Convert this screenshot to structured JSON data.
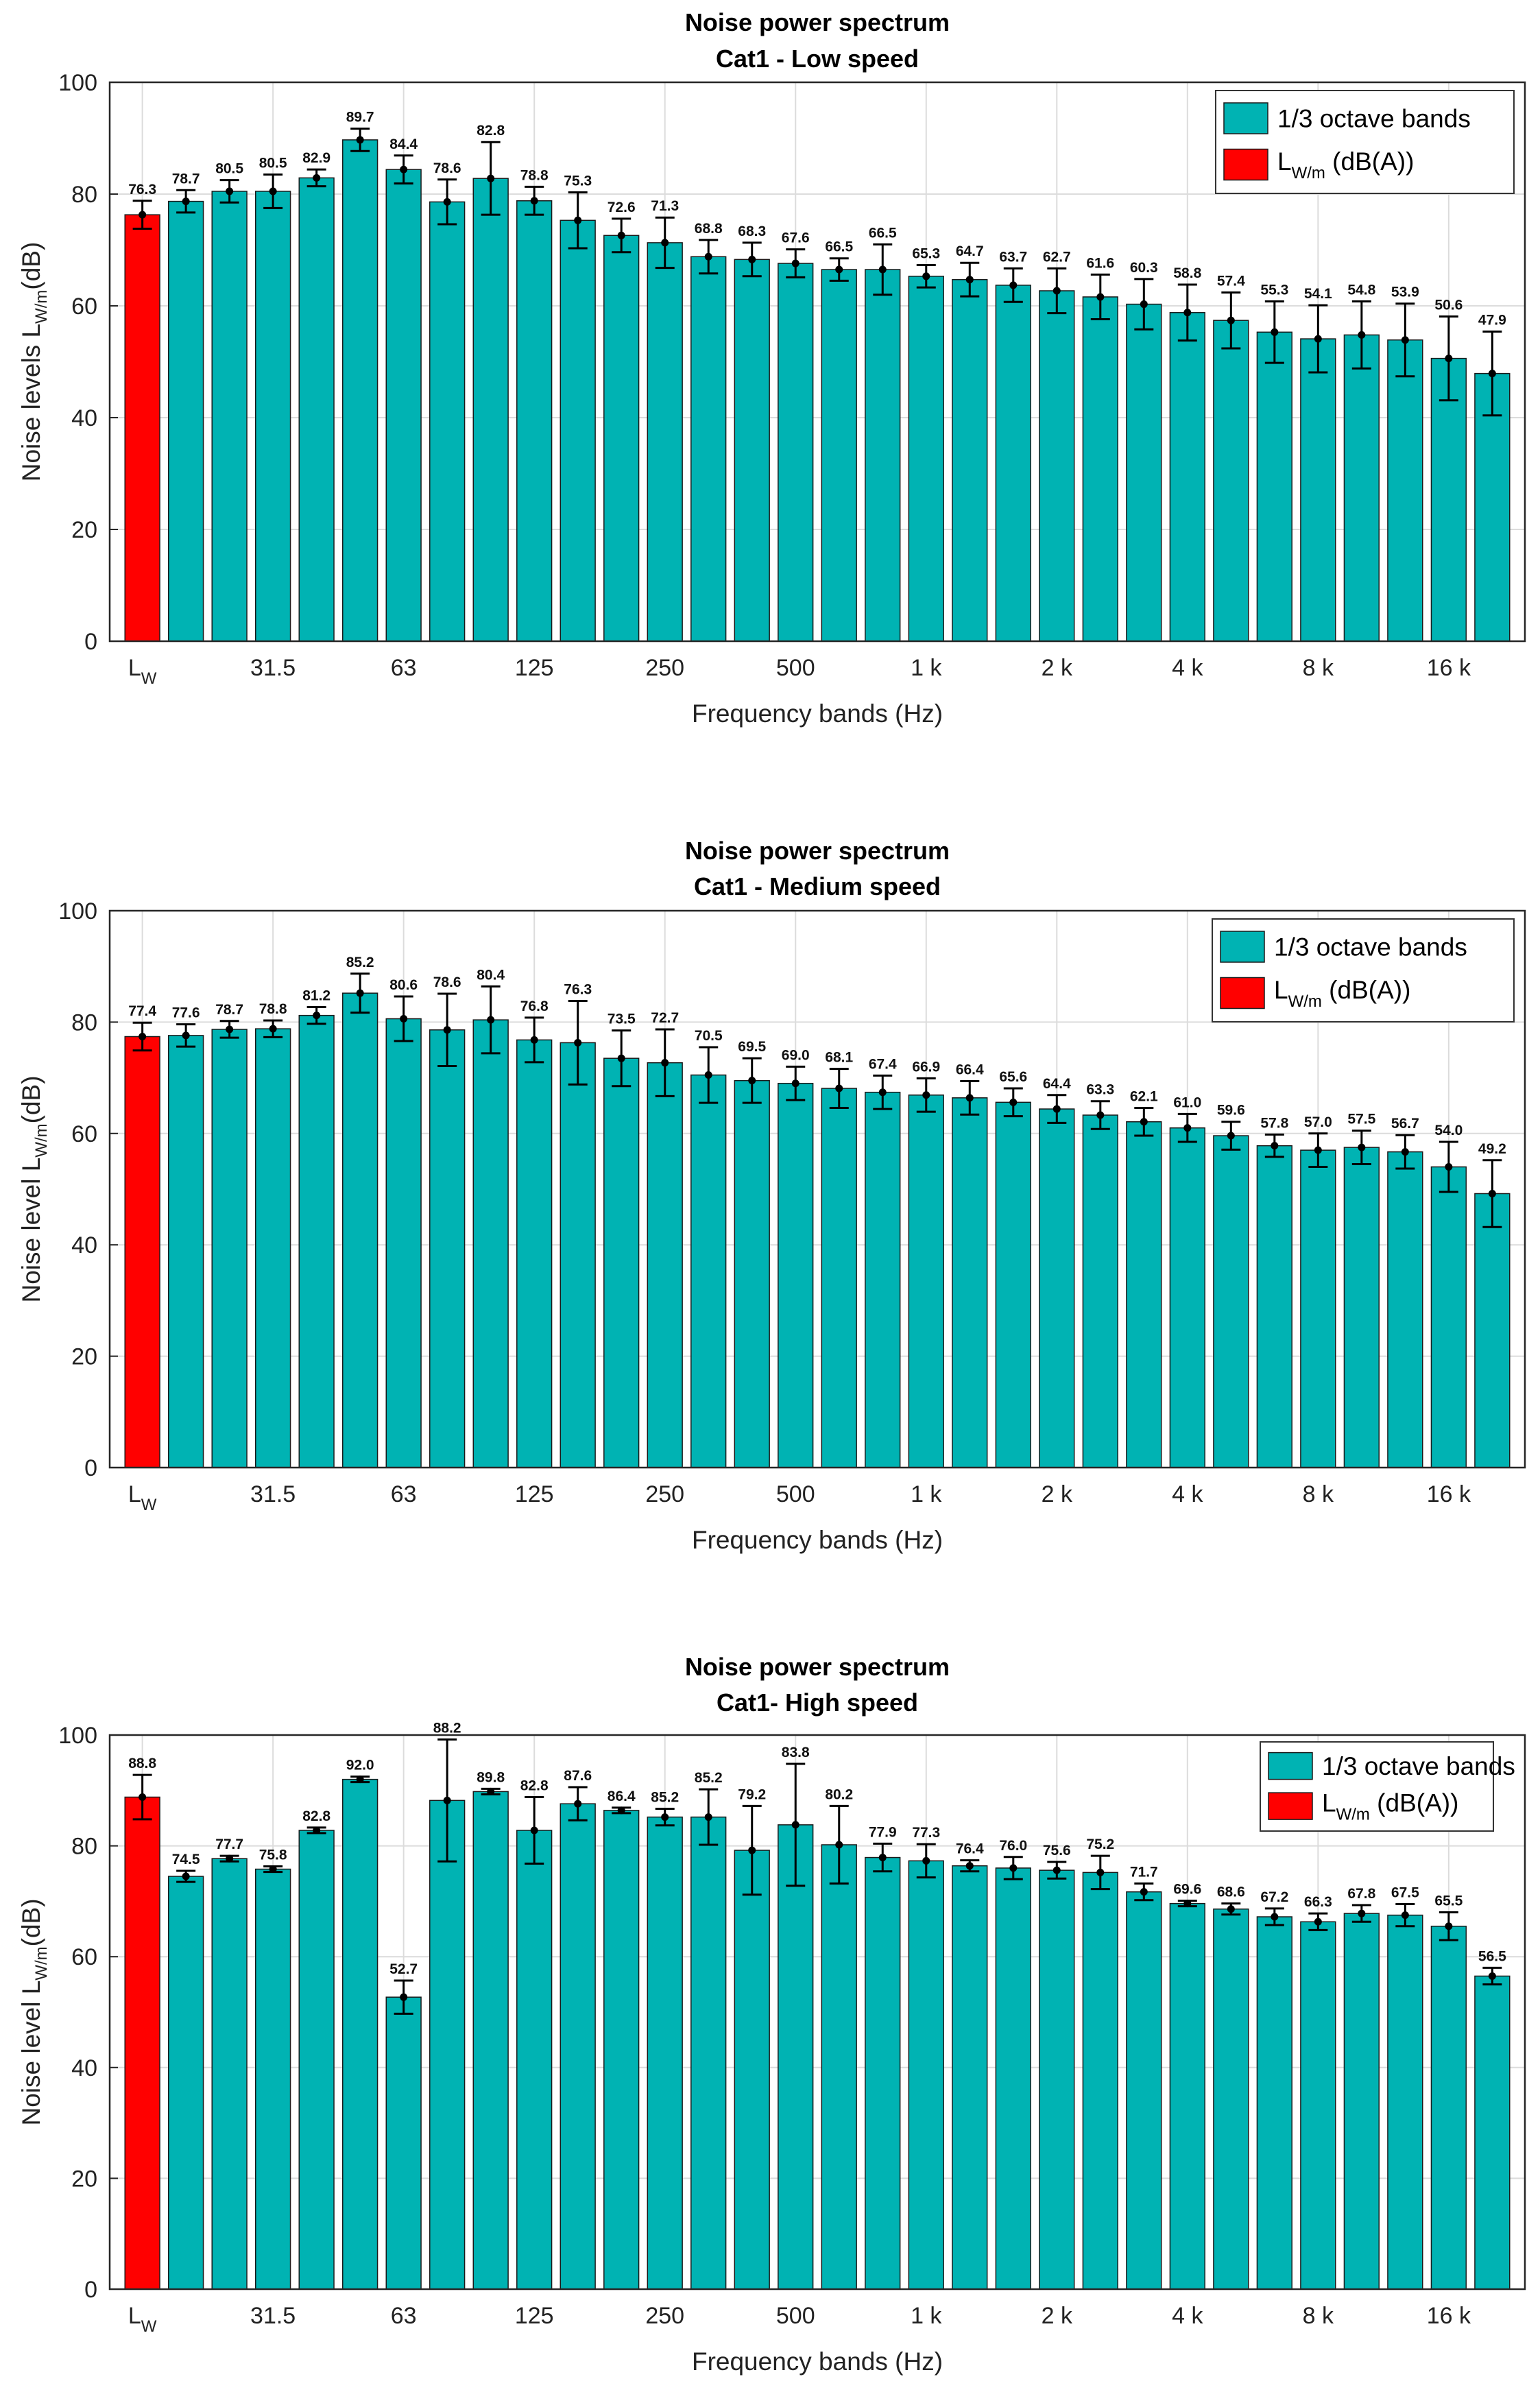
{
  "colors": {
    "band": "#00b3b3",
    "level": "#ff0000",
    "grid": "#dcdcdc",
    "axis": "#262626",
    "error": "#000000"
  },
  "chart_data": [
    {
      "type": "bar",
      "title": "Noise power spectrum",
      "subtitle": "Cat1 - Low speed",
      "xlabel": "Frequency bands (Hz)",
      "ylabel": "Noise levels L",
      "ylabel_sub": "W/m",
      "ylabel_tail": "(dB)",
      "ylim": [
        0,
        100
      ],
      "yticks": [
        0,
        20,
        40,
        60,
        80,
        100
      ],
      "grid": true,
      "legend_position": "top-right",
      "legend": {
        "bands": "1/3 octave bands",
        "level_main": "L",
        "level_sub": "W/m",
        "level_tail": "(dB(A))"
      },
      "x_tick_labels": [
        {
          "index": 0,
          "label": "L",
          "sub": "W"
        },
        {
          "index": 3,
          "label": "31.5"
        },
        {
          "index": 6,
          "label": "63"
        },
        {
          "index": 9,
          "label": "125"
        },
        {
          "index": 12,
          "label": "250"
        },
        {
          "index": 15,
          "label": "500"
        },
        {
          "index": 18,
          "label": "1 k"
        },
        {
          "index": 21,
          "label": "2 k"
        },
        {
          "index": 24,
          "label": "4 k"
        },
        {
          "index": 27,
          "label": "8 k"
        },
        {
          "index": 30,
          "label": "16 k"
        }
      ],
      "series": [
        {
          "name": "L_W/m (dB(A))",
          "color": "#ff0000",
          "values": [
            76.3
          ],
          "errors": [
            2.5
          ]
        },
        {
          "name": "1/3 octave bands",
          "color": "#00b3b3",
          "values": [
            78.7,
            80.5,
            80.5,
            82.9,
            89.7,
            84.4,
            78.6,
            82.8,
            78.8,
            75.3,
            72.6,
            71.3,
            68.8,
            68.3,
            67.6,
            66.5,
            66.5,
            65.3,
            64.7,
            63.7,
            62.7,
            61.6,
            60.3,
            58.8,
            57.4,
            55.3,
            54.1,
            54.8,
            53.9,
            50.6,
            47.9
          ],
          "errors": [
            2,
            2,
            3,
            1.5,
            2,
            2.5,
            4,
            6.5,
            2.5,
            5,
            3,
            4.5,
            3,
            3,
            2.5,
            2,
            4.5,
            2,
            3,
            3,
            4,
            4,
            4.5,
            5,
            5,
            5.5,
            6,
            6,
            6.5,
            7.5,
            7.5
          ]
        }
      ],
      "data_labels": [
        "76.3",
        "78.7",
        "80.5",
        "80.5",
        "82.9",
        "89.7",
        "84.4",
        "78.6",
        "82.8",
        "78.8",
        "75.3",
        "72.6",
        "71.3",
        "68.8",
        "68.3",
        "67.6",
        "66.5",
        "66.5",
        "65.3",
        "64.7",
        "63.7",
        "62.7",
        "61.6",
        "60.3",
        "58.8",
        "57.4",
        "55.3",
        "54.1",
        "54.8",
        "53.9",
        "50.6",
        "47.9"
      ]
    },
    {
      "type": "bar",
      "title": "Noise power spectrum",
      "subtitle": "Cat1 - Medium speed",
      "xlabel": "Frequency bands (Hz)",
      "ylabel": "Noise level L",
      "ylabel_sub": "W/m",
      "ylabel_tail": "(dB)",
      "ylim": [
        0,
        100
      ],
      "yticks": [
        0,
        20,
        40,
        60,
        80,
        100
      ],
      "grid": true,
      "legend_position": "top-right",
      "legend": {
        "bands": "1/3 octave bands",
        "level_main": "L",
        "level_sub": "W/m",
        "level_tail": "(dB(A))"
      },
      "x_tick_labels": [
        {
          "index": 0,
          "label": "L",
          "sub": "W"
        },
        {
          "index": 3,
          "label": "31.5"
        },
        {
          "index": 6,
          "label": "63"
        },
        {
          "index": 9,
          "label": "125"
        },
        {
          "index": 12,
          "label": "250"
        },
        {
          "index": 15,
          "label": "500"
        },
        {
          "index": 18,
          "label": "1 k"
        },
        {
          "index": 21,
          "label": "2 k"
        },
        {
          "index": 24,
          "label": "4 k"
        },
        {
          "index": 27,
          "label": "8 k"
        },
        {
          "index": 30,
          "label": "16 k"
        }
      ],
      "series": [
        {
          "name": "L_W/m (dB(A))",
          "color": "#ff0000",
          "values": [
            77.4
          ],
          "errors": [
            2.5
          ]
        },
        {
          "name": "1/3 octave bands",
          "color": "#00b3b3",
          "values": [
            77.6,
            78.7,
            78.8,
            81.2,
            85.2,
            80.6,
            78.6,
            80.4,
            76.8,
            76.3,
            73.5,
            72.7,
            70.5,
            69.5,
            69.0,
            68.1,
            67.4,
            66.9,
            66.4,
            65.6,
            64.4,
            63.3,
            62.1,
            61.0,
            59.6,
            57.8,
            57.0,
            57.5,
            56.7,
            54.0,
            49.2
          ],
          "errors": [
            2,
            1.5,
            1.5,
            1.5,
            3.5,
            4,
            6.5,
            6,
            4,
            7.5,
            5,
            6,
            5,
            4,
            3,
            3.5,
            3,
            3,
            3,
            2.5,
            2.5,
            2.5,
            2.5,
            2.5,
            2.5,
            2,
            3,
            3,
            3,
            4.5,
            6
          ]
        }
      ],
      "data_labels": [
        "77.4",
        "77.6",
        "78.7",
        "78.8",
        "81.2",
        "85.2",
        "80.6",
        "78.6",
        "80.4",
        "76.8",
        "76.3",
        "73.5",
        "72.7",
        "70.5",
        "69.5",
        "69.0",
        "68.1",
        "67.4",
        "66.9",
        "66.4",
        "65.6",
        "64.4",
        "63.3",
        "62.1",
        "61.0",
        "59.6",
        "57.8",
        "57.0",
        "57.5",
        "56.7",
        "54.0",
        "49.2"
      ]
    },
    {
      "type": "bar",
      "title": "Noise power spectrum",
      "subtitle": "Cat1- High speed",
      "xlabel": "Frequency bands (Hz)",
      "ylabel": "Noise level L",
      "ylabel_sub": "W/m",
      "ylabel_tail": "(dB)",
      "ylim": [
        0,
        100
      ],
      "yticks": [
        0,
        20,
        40,
        60,
        80,
        100
      ],
      "grid": true,
      "legend_position": "top-right",
      "legend": {
        "bands": "1/3 octave bands",
        "level_main": "L",
        "level_sub": "W/m",
        "level_tail": "(dB(A))"
      },
      "x_tick_labels": [
        {
          "index": 0,
          "label": "L",
          "sub": "W"
        },
        {
          "index": 3,
          "label": "31.5"
        },
        {
          "index": 6,
          "label": "63"
        },
        {
          "index": 9,
          "label": "125"
        },
        {
          "index": 12,
          "label": "250"
        },
        {
          "index": 15,
          "label": "500"
        },
        {
          "index": 18,
          "label": "1 k"
        },
        {
          "index": 21,
          "label": "2 k"
        },
        {
          "index": 24,
          "label": "4 k"
        },
        {
          "index": 27,
          "label": "8 k"
        },
        {
          "index": 30,
          "label": "16 k"
        }
      ],
      "series": [
        {
          "name": "L_W/m (dB(A))",
          "color": "#ff0000",
          "values": [
            88.8
          ],
          "errors": [
            4
          ]
        },
        {
          "name": "1/3 octave bands",
          "color": "#00b3b3",
          "values": [
            74.5,
            77.7,
            75.8,
            82.8,
            92.0,
            52.7,
            88.2,
            89.8,
            82.8,
            87.6,
            86.4,
            85.2,
            85.2,
            79.2,
            83.8,
            80.2,
            77.9,
            77.3,
            76.4,
            76.0,
            75.6,
            75.2,
            71.7,
            69.6,
            68.6,
            67.2,
            66.3,
            67.8,
            67.5,
            65.5,
            56.5
          ],
          "errors": [
            1,
            0.5,
            0.5,
            0.5,
            0.5,
            3,
            11,
            0.5,
            6,
            3,
            0.5,
            1.5,
            5,
            8,
            11,
            7,
            2.5,
            3,
            1,
            2,
            1.5,
            3,
            1.5,
            0.5,
            1,
            1.5,
            1.5,
            1.5,
            2,
            2.5,
            1.5
          ]
        }
      ],
      "data_labels": [
        "88.8",
        "74.5",
        "77.7",
        "75.8",
        "82.8",
        "92.0",
        "52.7",
        "88.2",
        "89.8",
        "82.8",
        "87.6",
        "86.4",
        "85.2",
        "85.2",
        "79.2",
        "83.8",
        "80.2",
        "77.9",
        "77.3",
        "76.4",
        "76.0",
        "75.6",
        "75.2",
        "71.7",
        "69.6",
        "68.6",
        "67.2",
        "66.3",
        "67.8",
        "67.5",
        "65.5",
        "56.5"
      ]
    }
  ]
}
